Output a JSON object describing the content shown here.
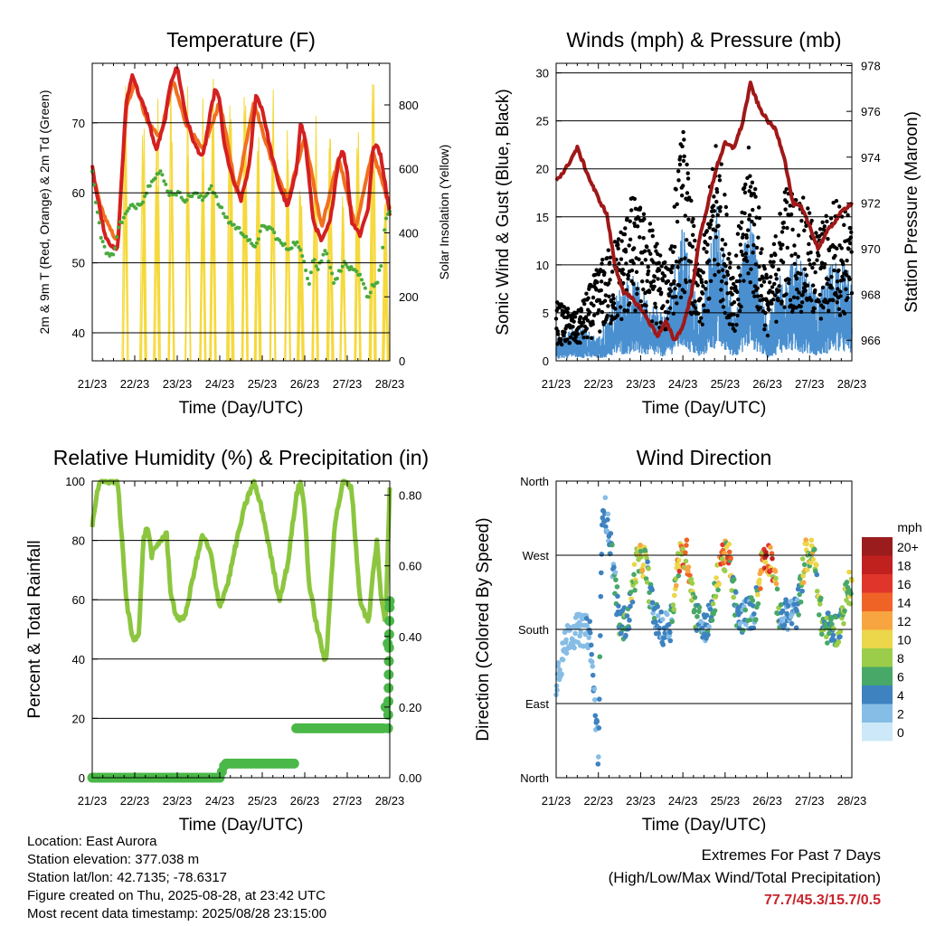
{
  "chart_data": [
    {
      "type": "line",
      "title": "Temperature (F)",
      "xlabel": "Time (Day/UTC)",
      "ylabel": "2m & 9m T (Red, Orange) & 2m Td (Green)",
      "y2label": "Solar Insolation (Yellow)",
      "x_ticks": [
        "21/23",
        "22/23",
        "23/23",
        "24/23",
        "25/23",
        "26/23",
        "27/23",
        "28/23"
      ],
      "y_ticks": [
        40,
        50,
        60,
        70
      ],
      "y2_ticks": [
        0,
        200,
        400,
        600,
        800
      ],
      "ylim": [
        36,
        78.5
      ],
      "y2lim": [
        0,
        930
      ],
      "grid": true,
      "colors": {
        "t2m": "#d42020",
        "t9m": "#f07020",
        "td2m": "#4aaa3c",
        "solar": "#f5d93c"
      },
      "series": [
        {
          "name": "2m T",
          "x": [
            0,
            0.1,
            0.2,
            0.3,
            0.5,
            0.6,
            0.7,
            0.8,
            0.95,
            1.1,
            1.3,
            1.5,
            1.7,
            1.85,
            2.0,
            2.2,
            2.4,
            2.6,
            2.8,
            2.9,
            3.0,
            3.1,
            3.3,
            3.5,
            3.7,
            3.85,
            4.0,
            4.2,
            4.4,
            4.6,
            4.8,
            4.9,
            5.0,
            5.1,
            5.2,
            5.4,
            5.6,
            5.8,
            5.9,
            6.0,
            6.1,
            6.3,
            6.5,
            6.6,
            6.7,
            6.8,
            6.9,
            7.0
          ],
          "values": [
            64,
            60,
            57,
            54,
            52,
            52,
            63,
            73,
            77,
            74,
            71,
            66,
            70,
            76,
            78,
            71,
            67,
            65,
            72,
            75,
            73,
            67,
            62,
            59,
            64,
            74,
            72,
            66,
            61,
            58,
            63,
            70,
            68,
            62,
            56,
            53,
            56,
            65,
            66,
            63,
            56,
            54,
            58,
            66,
            67,
            65,
            61,
            57
          ]
        },
        {
          "name": "9m T",
          "x": [
            0,
            0.2,
            0.4,
            0.6,
            0.8,
            1.0,
            1.3,
            1.6,
            1.9,
            2.2,
            2.6,
            3.0,
            3.4,
            3.8,
            4.2,
            4.6,
            5.0,
            5.4,
            5.8,
            6.2,
            6.6,
            7.0
          ],
          "values": [
            63,
            58,
            55,
            53,
            72,
            76,
            70,
            68,
            76,
            70,
            66,
            73,
            60,
            73,
            65,
            59,
            68,
            55,
            65,
            55,
            66,
            58
          ]
        },
        {
          "name": "2m Td",
          "x": [
            0,
            0.1,
            0.2,
            0.3,
            0.4,
            0.5,
            0.6,
            0.7,
            0.9,
            1.0,
            1.2,
            1.4,
            1.6,
            1.8,
            2.0,
            2.2,
            2.4,
            2.6,
            2.8,
            3.0,
            3.2,
            3.4,
            3.6,
            3.8,
            4.0,
            4.2,
            4.4,
            4.6,
            4.8,
            5.0,
            5.1,
            5.2,
            5.3,
            5.5,
            5.7,
            5.9,
            6.1,
            6.3,
            6.5,
            6.6,
            6.7,
            6.8,
            6.9,
            7.0
          ],
          "values": [
            63,
            58,
            54,
            52,
            51,
            51,
            55,
            56,
            58,
            58,
            59,
            62,
            63,
            60,
            60,
            59,
            60,
            59,
            61,
            58,
            56,
            55,
            54,
            52,
            55,
            55,
            53,
            52,
            53,
            50,
            47,
            51,
            49,
            52,
            47,
            50,
            49,
            48,
            45,
            47,
            47,
            50,
            56,
            57
          ]
        },
        {
          "name": "Solar Insolation",
          "peaks_x": [
            0.78,
            1.2,
            1.52,
            1.85,
            2.25,
            2.6,
            2.85,
            3.25,
            3.6,
            3.9,
            4.25,
            4.6,
            4.9,
            5.25,
            5.6,
            5.9,
            6.25,
            6.6,
            6.9
          ],
          "peak_values": [
            860,
            780,
            870,
            900,
            880,
            880,
            900,
            880,
            850,
            700,
            880,
            840,
            560,
            880,
            700,
            560,
            860,
            890,
            500
          ]
        }
      ]
    },
    {
      "type": "scatter",
      "title": "Winds (mph) & Pressure (mb)",
      "xlabel": "Time (Day/UTC)",
      "ylabel": "Sonic Wind & Gust (Blue, Black)",
      "y2label": "Station Pressure (Maroon)",
      "x_ticks": [
        "21/23",
        "22/23",
        "23/23",
        "24/23",
        "25/23",
        "26/23",
        "27/23",
        "28/23"
      ],
      "y_ticks": [
        0,
        5,
        10,
        15,
        20,
        25,
        30
      ],
      "y2_ticks": [
        966,
        968,
        970,
        972,
        974,
        976,
        978
      ],
      "ylim": [
        0,
        31
      ],
      "y2lim": [
        965.1,
        978.1
      ],
      "grid": true,
      "colors": {
        "wind": "#4a90d0",
        "gust": "#000000",
        "pressure": "#a01818"
      },
      "series": [
        {
          "name": "Sonic Wind",
          "x": [
            0,
            0.5,
            1.0,
            1.5,
            1.8,
            2.2,
            2.6,
            3.0,
            3.4,
            3.8,
            4.2,
            4.6,
            5.0,
            5.4,
            5.8,
            6.2,
            6.6,
            7.0
          ],
          "values": [
            2,
            3,
            2,
            6,
            7,
            5,
            4,
            12,
            3,
            13,
            4,
            13,
            3,
            9,
            8,
            5,
            9,
            7
          ]
        },
        {
          "name": "Gust",
          "x": [
            0,
            0.5,
            1.0,
            1.5,
            1.8,
            2.2,
            2.6,
            3.0,
            3.4,
            3.8,
            4.2,
            4.6,
            5.0,
            5.4,
            5.8,
            6.2,
            6.6,
            7.0
          ],
          "values": [
            5,
            4,
            8,
            11,
            14,
            12,
            8,
            20,
            7,
            20,
            8,
            19,
            7,
            15,
            14,
            11,
            14,
            12
          ]
        },
        {
          "name": "Station Pressure",
          "x": [
            0,
            0.2,
            0.5,
            0.8,
            1.0,
            1.2,
            1.4,
            1.6,
            1.8,
            2.0,
            2.2,
            2.4,
            2.6,
            2.8,
            3.0,
            3.2,
            3.4,
            3.6,
            3.8,
            4.0,
            4.2,
            4.4,
            4.6,
            4.8,
            5.0,
            5.2,
            5.4,
            5.6,
            5.8,
            6.0,
            6.2,
            6.4,
            6.6,
            6.8,
            7.0
          ],
          "values": [
            973,
            973.4,
            974.4,
            973,
            972.2,
            971.5,
            969.2,
            968.1,
            967.8,
            967.4,
            966.8,
            966.2,
            966.8,
            966,
            966.6,
            968,
            970.5,
            972,
            973.6,
            974.6,
            974.4,
            975.4,
            977.2,
            976.2,
            975.6,
            975.2,
            974,
            972,
            971.8,
            971,
            970,
            970.7,
            971.2,
            971.7,
            972
          ]
        }
      ]
    },
    {
      "type": "line",
      "title": "Relative Humidity (%) & Precipitation (in)",
      "xlabel": "Time (Day/UTC)",
      "ylabel": "Percent & Total Rainfall",
      "x_ticks": [
        "21/23",
        "22/23",
        "23/23",
        "24/23",
        "25/23",
        "26/23",
        "27/23",
        "28/23"
      ],
      "y_ticks": [
        0,
        20,
        40,
        60,
        80,
        100
      ],
      "y2_ticks": [
        "0.00",
        "0.20",
        "0.40",
        "0.60",
        "0.80"
      ],
      "ylim": [
        0,
        100
      ],
      "y2lim": [
        0,
        0.84
      ],
      "grid": true,
      "colors": {
        "rh": "#8cc63f",
        "precip": "#4ab848"
      },
      "series": [
        {
          "name": "Relative Humidity",
          "x": [
            0,
            0.1,
            0.2,
            0.4,
            0.6,
            0.8,
            0.95,
            1.1,
            1.2,
            1.3,
            1.4,
            1.6,
            1.75,
            1.85,
            2.0,
            2.2,
            2.4,
            2.6,
            2.8,
            2.9,
            3.0,
            3.2,
            3.4,
            3.6,
            3.8,
            3.9,
            4.0,
            4.2,
            4.4,
            4.6,
            4.8,
            4.9,
            5.0,
            5.1,
            5.3,
            5.5,
            5.7,
            5.9,
            6.1,
            6.3,
            6.5,
            6.6,
            6.7,
            6.8,
            6.9,
            7.0
          ],
          "values": [
            85,
            95,
            100,
            100,
            100,
            60,
            47,
            48,
            80,
            85,
            75,
            80,
            82,
            62,
            53,
            55,
            70,
            82,
            75,
            65,
            58,
            66,
            80,
            92,
            100,
            95,
            90,
            75,
            60,
            72,
            95,
            100,
            90,
            65,
            50,
            38,
            85,
            100,
            98,
            60,
            52,
            68,
            80,
            60,
            52,
            98
          ]
        },
        {
          "name": "Total Rainfall",
          "x": [
            0,
            1.0,
            2.0,
            3.0,
            3.12,
            3.5,
            4.0,
            4.5,
            4.75,
            4.8,
            5.0,
            5.5,
            6.0,
            6.5,
            6.85,
            6.9,
            6.95,
            7.0
          ],
          "values": [
            0,
            0,
            0,
            0,
            0.04,
            0.04,
            0.04,
            0.04,
            0.04,
            0.14,
            0.14,
            0.14,
            0.14,
            0.14,
            0.14,
            0.2,
            0.38,
            0.5
          ]
        }
      ]
    },
    {
      "type": "scatter",
      "title": "Wind Direction",
      "xlabel": "Time (Day/UTC)",
      "ylabel": "Direction (Colored By Speed)",
      "x_ticks": [
        "21/23",
        "22/23",
        "23/23",
        "24/23",
        "25/23",
        "26/23",
        "27/23",
        "28/23"
      ],
      "y_ticks": [
        "North",
        "East",
        "South",
        "West",
        "North"
      ],
      "ylim": [
        0,
        360
      ],
      "grid": true,
      "colorbar": {
        "unit": "mph",
        "labels": [
          "20+",
          "18",
          "16",
          "14",
          "12",
          "10",
          "8",
          "6",
          "4",
          "2",
          "0"
        ],
        "colors": [
          "#9b1c1c",
          "#c0211f",
          "#e0352b",
          "#f06327",
          "#f7a540",
          "#ecd64a",
          "#9ccd4a",
          "#48a868",
          "#3e82c0",
          "#86bde6",
          "#cde8f8"
        ]
      },
      "series": [
        {
          "name": "Direction",
          "x": [
            0,
            0.3,
            0.6,
            0.8,
            0.9,
            1.0,
            1.1,
            1.3,
            1.5,
            1.7,
            1.9,
            2.1,
            2.3,
            2.5,
            2.7,
            2.9,
            3.1,
            3.3,
            3.5,
            3.7,
            3.9,
            4.1,
            4.3,
            4.5,
            4.7,
            4.9,
            5.1,
            5.3,
            5.5,
            5.7,
            5.9,
            6.1,
            6.3,
            6.5,
            6.7,
            6.9,
            7.0
          ],
          "values": [
            120,
            175,
            180,
            175,
            100,
            30,
            340,
            280,
            185,
            190,
            260,
            265,
            200,
            180,
            185,
            265,
            270,
            200,
            180,
            200,
            270,
            265,
            190,
            200,
            200,
            270,
            265,
            190,
            200,
            200,
            270,
            270,
            185,
            180,
            180,
            230,
            230
          ],
          "speeds": [
            2,
            2,
            2,
            3,
            3,
            4,
            4,
            4,
            6,
            6,
            10,
            10,
            4,
            4,
            4,
            13,
            14,
            6,
            4,
            5,
            14,
            12,
            4,
            5,
            4,
            15,
            15,
            5,
            4,
            3,
            10,
            10,
            7,
            6,
            6,
            10,
            8
          ]
        }
      ]
    }
  ],
  "info": {
    "location": "Location: East Aurora",
    "elevation": "Station elevation: 377.038 m",
    "latlon": "Station lat/lon: 42.7135; -78.6317",
    "created": "Figure created on Thu, 2025-08-28, at 23:42 UTC",
    "timestamp": "Most recent data timestamp: 2025/08/28 23:15:00"
  },
  "extremes": {
    "title": "Extremes For Past 7 Days",
    "subtitle": "(High/Low/Max Wind/Total Precipitation)",
    "values": "77.7/45.3/15.7/0.5"
  }
}
